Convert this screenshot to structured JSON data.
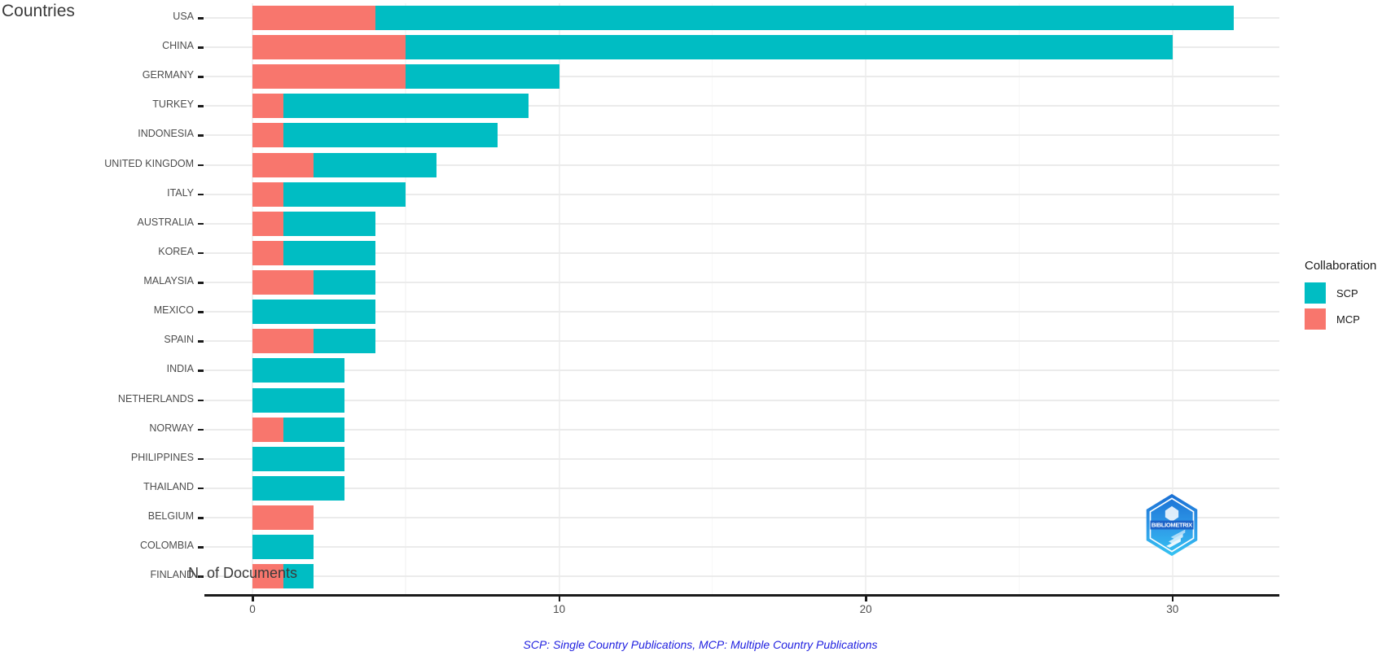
{
  "title": "Countries",
  "x_axis_title": "N. of Documents",
  "footer_note": "SCP: Single Country Publications, MCP: Multiple Country Publications",
  "legend": {
    "title": "Collaboration",
    "items": [
      {
        "label": "SCP",
        "color": "#00BDC3"
      },
      {
        "label": "MCP",
        "color": "#F8766D"
      }
    ]
  },
  "logo_text": "BIBLIOMETRIX",
  "colors": {
    "scp": "#00BDC3",
    "mcp": "#F8766D",
    "axis_line": "#1a1a1a",
    "gridline_major_h": "#ebebeb",
    "gridline_major_v": "#f1f1f1",
    "gridline_minor_v": "#f7f7f7",
    "footer_blue": "#2121e0"
  },
  "chart_data": {
    "type": "bar",
    "orientation": "horizontal",
    "stacked": true,
    "title": "Countries",
    "xlabel": "N. of Documents",
    "ylabel": "Countries",
    "legend_position": "right",
    "grid": true,
    "xlim": [
      0,
      33.5
    ],
    "xticks": [
      0,
      10,
      20,
      30
    ],
    "xticks_minor": [
      5,
      15,
      25
    ],
    "categories": [
      "USA",
      "CHINA",
      "GERMANY",
      "TURKEY",
      "INDONESIA",
      "UNITED KINGDOM",
      "ITALY",
      "AUSTRALIA",
      "KOREA",
      "MALAYSIA",
      "MEXICO",
      "SPAIN",
      "INDIA",
      "NETHERLANDS",
      "NORWAY",
      "PHILIPPINES",
      "THAILAND",
      "BELGIUM",
      "COLOMBIA",
      "FINLAND"
    ],
    "series": [
      {
        "name": "MCP",
        "color": "#F8766D",
        "values": [
          4,
          5,
          5,
          1,
          1,
          2,
          1,
          1,
          1,
          2,
          0,
          2,
          0,
          0,
          1,
          0,
          0,
          2,
          0,
          1
        ]
      },
      {
        "name": "SCP",
        "color": "#00BDC3",
        "values": [
          28,
          25,
          5,
          8,
          7,
          4,
          4,
          3,
          3,
          2,
          4,
          2,
          3,
          3,
          2,
          3,
          3,
          0,
          2,
          1
        ]
      }
    ],
    "totals": [
      32,
      30,
      10,
      9,
      8,
      6,
      5,
      4,
      4,
      4,
      4,
      4,
      3,
      3,
      3,
      3,
      3,
      2,
      2,
      2
    ]
  }
}
